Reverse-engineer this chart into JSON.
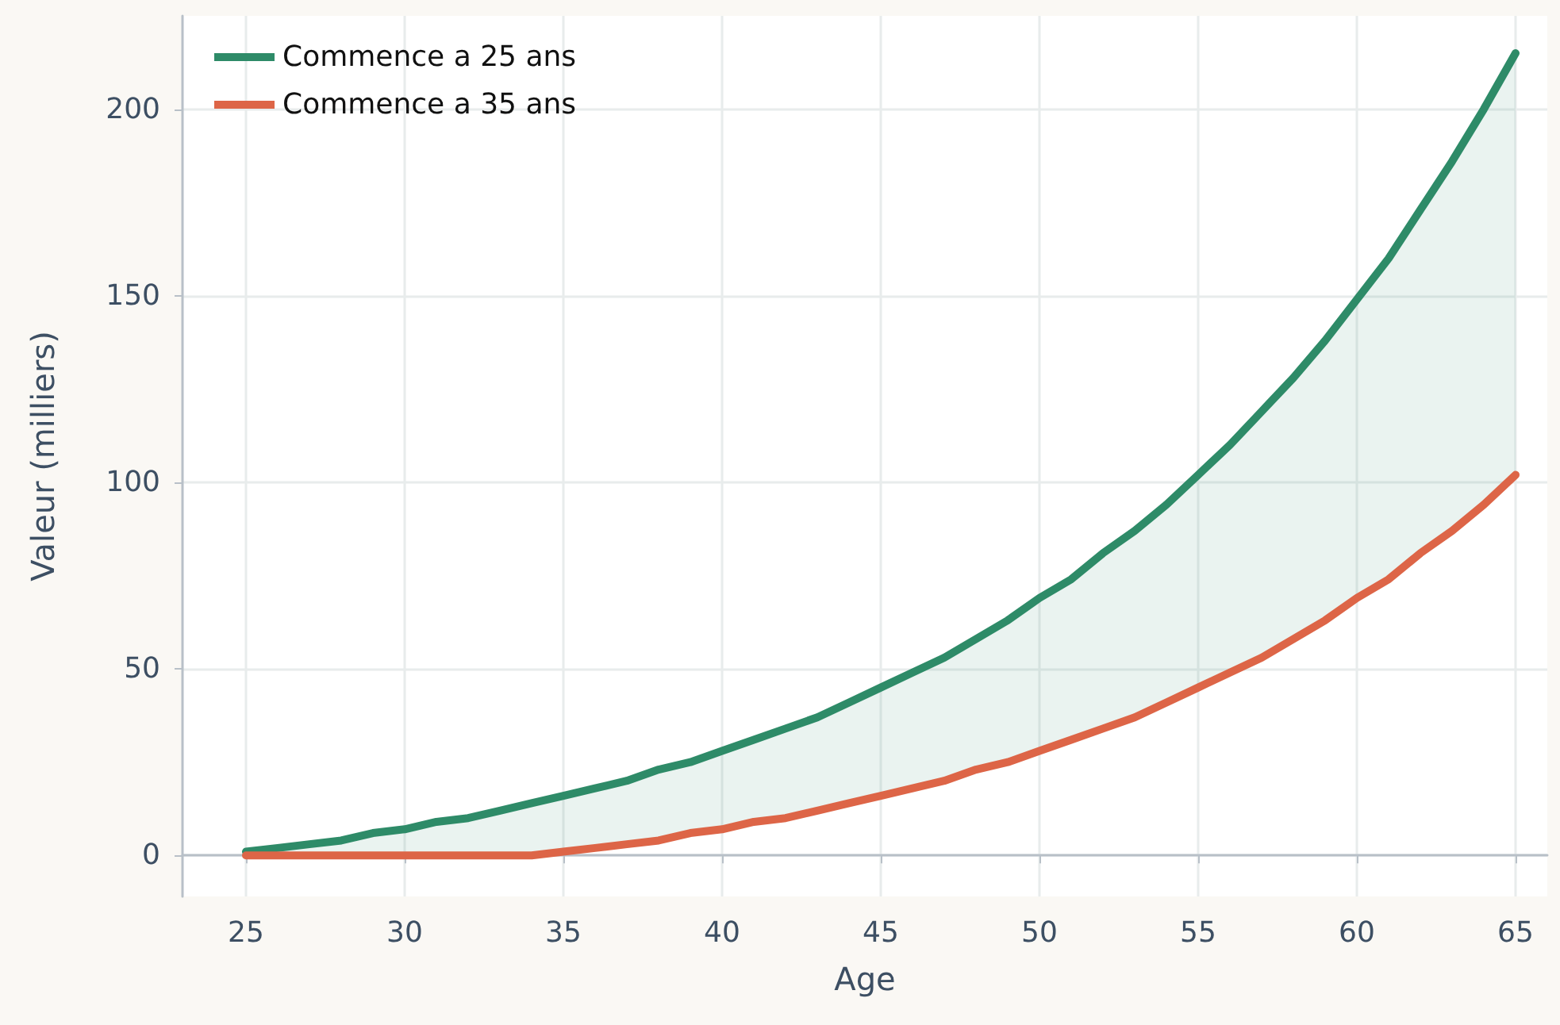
{
  "chart_data": {
    "type": "line",
    "xlabel": "Age",
    "ylabel": "Valeur (milliers)",
    "x": [
      25,
      26,
      27,
      28,
      29,
      30,
      31,
      32,
      33,
      34,
      35,
      36,
      37,
      38,
      39,
      40,
      41,
      42,
      43,
      44,
      45,
      46,
      47,
      48,
      49,
      50,
      51,
      52,
      53,
      54,
      55,
      56,
      57,
      58,
      59,
      60,
      61,
      62,
      63,
      64,
      65
    ],
    "series": [
      {
        "name": "Commence a 25 ans",
        "color": "#2e8b68",
        "values": [
          1,
          2,
          3,
          4,
          6,
          7,
          9,
          10,
          12,
          14,
          16,
          18,
          20,
          23,
          25,
          28,
          31,
          34,
          37,
          41,
          45,
          49,
          53,
          58,
          63,
          69,
          74,
          81,
          87,
          94,
          102,
          110,
          119,
          128,
          138,
          149,
          160,
          173,
          186,
          200,
          215
        ],
        "lower": [
          0,
          0,
          0,
          0,
          0,
          0,
          0,
          0,
          0,
          0,
          1,
          2,
          3,
          4,
          6,
          7,
          9,
          10,
          12,
          14,
          16,
          18,
          20,
          23,
          25,
          28,
          31,
          34,
          37,
          41,
          45,
          49,
          53,
          58,
          63,
          69,
          74,
          81,
          87,
          94,
          102
        ],
        "upper": [
          1,
          2,
          3,
          4,
          6,
          7,
          9,
          10,
          12,
          14,
          16,
          18,
          20,
          23,
          25,
          28,
          31,
          34,
          37,
          41,
          45,
          49,
          53,
          58,
          63,
          69,
          74,
          81,
          87,
          94,
          102,
          110,
          119,
          128,
          138,
          149,
          160,
          173,
          186,
          200,
          215
        ]
      },
      {
        "name": "Commence a 35 ans",
        "color": "#dd6547",
        "values": [
          0,
          0,
          0,
          0,
          0,
          0,
          0,
          0,
          0,
          0,
          1,
          2,
          3,
          4,
          6,
          7,
          9,
          10,
          12,
          14,
          16,
          18,
          20,
          23,
          25,
          28,
          31,
          34,
          37,
          41,
          45,
          49,
          53,
          58,
          63,
          69,
          74,
          81,
          87,
          94,
          102
        ]
      }
    ],
    "xlim": [
      23,
      66
    ],
    "xticks": [
      25,
      30,
      35,
      40,
      45,
      50,
      55,
      60,
      65
    ],
    "ylim": [
      -11,
      225
    ],
    "yticks": [
      0,
      50,
      100,
      150,
      200
    ],
    "grid": true,
    "legend": "top left",
    "marker": "none",
    "line_style": "solid"
  }
}
